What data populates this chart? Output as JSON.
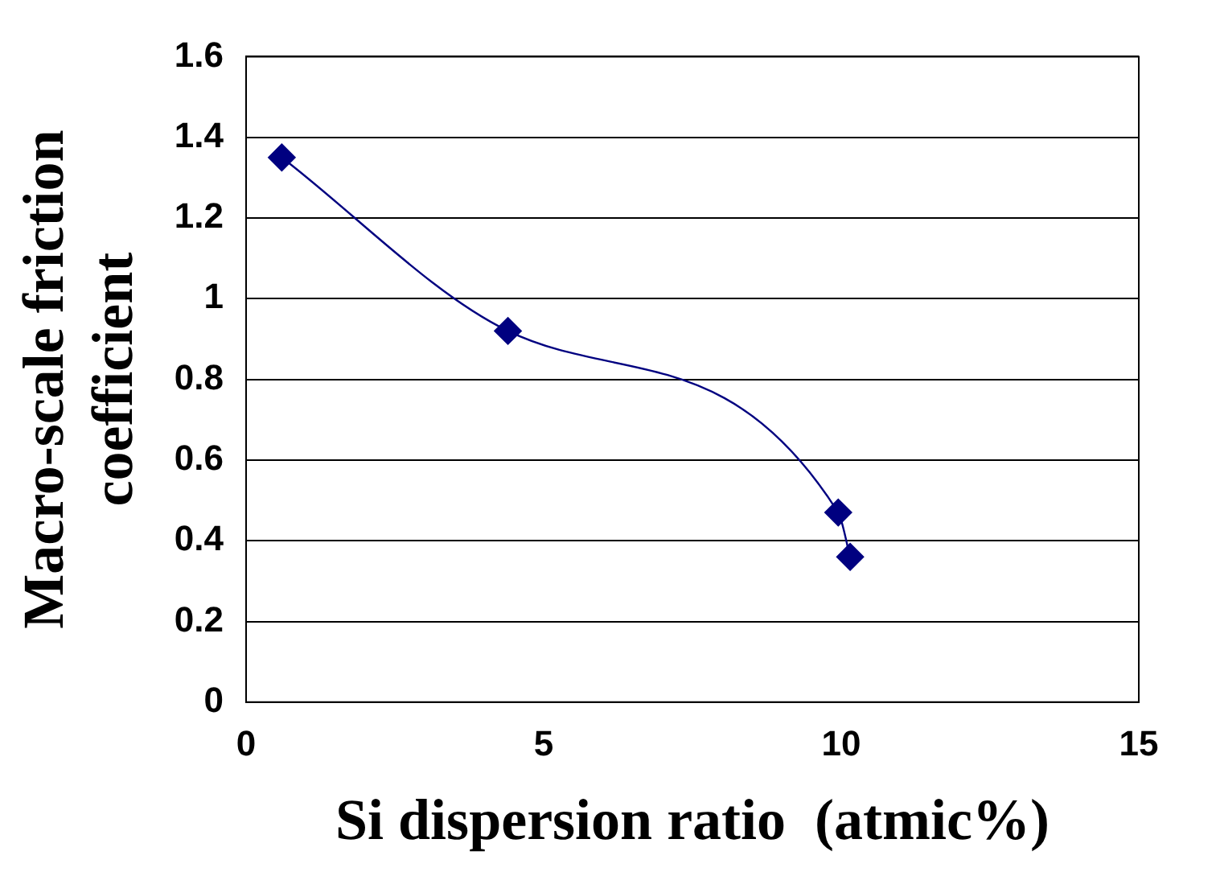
{
  "chart_data": {
    "type": "line",
    "xlabel": "Si dispersion ratio  (atmic%)",
    "ylabel": "Macro-scale friction\ncoefficient",
    "x": [
      0.6,
      4.4,
      9.95,
      10.15
    ],
    "series": [
      {
        "color": "#000080",
        "values": [
          1.35,
          0.92,
          0.47,
          0.36
        ]
      }
    ],
    "xlim": [
      0,
      15
    ],
    "xticks": [
      0,
      5,
      10,
      15
    ],
    "ylim": [
      0,
      1.6
    ],
    "yticks": [
      0,
      0.2,
      0.4,
      0.6,
      0.8,
      1,
      1.2,
      1.4,
      1.6
    ],
    "grid": "y",
    "marker": "diamond",
    "line_style": "solid",
    "legend": false
  }
}
